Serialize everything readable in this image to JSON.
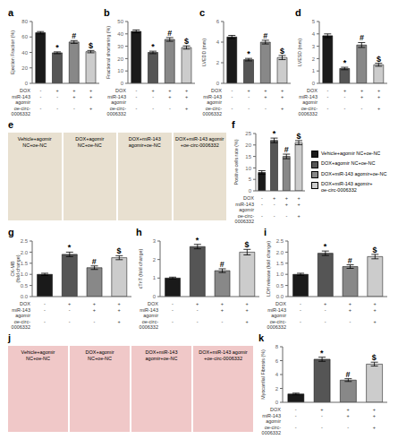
{
  "chart_data": [
    {
      "type": "bar",
      "title": "a",
      "ylabel": "Ejection Fraction (%)",
      "ylim": [
        0,
        80
      ],
      "yticks": [
        0,
        20,
        40,
        60,
        80
      ],
      "values": [
        65.5,
        39.5,
        53.5,
        41.0
      ],
      "errors": [
        1.5,
        1.2,
        1.8,
        1.5
      ],
      "colors": [
        "#1a1a1a",
        "#555555",
        "#888888",
        "#cccccc"
      ],
      "annotations": [
        null,
        "*",
        "#",
        "$"
      ],
      "x_rows": [
        {
          "label": "DOX",
          "values": [
            "-",
            "+",
            "+",
            "+"
          ]
        },
        {
          "label": "miR-143\nagomir",
          "values": [
            "-",
            "-",
            "+",
            "+"
          ]
        },
        {
          "label": "oe-circ-\n0006332",
          "values": [
            "-",
            "-",
            "-",
            "+"
          ]
        }
      ],
      "grid": false
    },
    {
      "type": "bar",
      "title": "b",
      "ylabel": "Fractional shortening (%)",
      "ylim": [
        0,
        50
      ],
      "yticks": [
        0,
        10,
        20,
        30,
        40,
        50
      ],
      "values": [
        42.0,
        25.0,
        35.5,
        29.0
      ],
      "errors": [
        1.2,
        1.0,
        1.5,
        1.3
      ],
      "colors": [
        "#1a1a1a",
        "#555555",
        "#888888",
        "#cccccc"
      ],
      "annotations": [
        null,
        "*",
        "#",
        "$"
      ],
      "x_rows": [
        {
          "label": "DOX",
          "values": [
            "-",
            "+",
            "+",
            "+"
          ]
        },
        {
          "label": "miR-143\nagomir",
          "values": [
            "-",
            "-",
            "+",
            "+"
          ]
        },
        {
          "label": "oe-circ-\n0006332",
          "values": [
            "-",
            "-",
            "-",
            "+"
          ]
        }
      ],
      "grid": false
    },
    {
      "type": "bar",
      "title": "c",
      "ylabel": "LVEDD (mm)",
      "ylim": [
        0,
        6
      ],
      "yticks": [
        0,
        2,
        4,
        6
      ],
      "values": [
        4.5,
        2.3,
        4.0,
        2.5
      ],
      "errors": [
        0.15,
        0.12,
        0.18,
        0.2
      ],
      "colors": [
        "#1a1a1a",
        "#555555",
        "#888888",
        "#cccccc"
      ],
      "annotations": [
        null,
        "*",
        "#",
        "$"
      ],
      "x_rows": [
        {
          "label": "DOX",
          "values": [
            "-",
            "+",
            "+",
            "+"
          ]
        },
        {
          "label": "miR-143\nagomir",
          "values": [
            "-",
            "-",
            "+",
            "+"
          ]
        },
        {
          "label": "oe-circ-\n0006332",
          "values": [
            "-",
            "-",
            "-",
            "+"
          ]
        }
      ],
      "grid": false
    },
    {
      "type": "bar",
      "title": "d",
      "ylabel": "LVESD (mm)",
      "ylim": [
        0,
        5
      ],
      "yticks": [
        0,
        1,
        2,
        3,
        4,
        5
      ],
      "values": [
        3.85,
        1.2,
        3.1,
        1.5
      ],
      "errors": [
        0.15,
        0.1,
        0.2,
        0.12
      ],
      "colors": [
        "#1a1a1a",
        "#555555",
        "#888888",
        "#cccccc"
      ],
      "annotations": [
        null,
        "*",
        "#",
        "$"
      ],
      "x_rows": [
        {
          "label": "DOX",
          "values": [
            "-",
            "+",
            "+",
            "+"
          ]
        },
        {
          "label": "miR-143\nagomir",
          "values": [
            "-",
            "-",
            "+",
            "+"
          ]
        },
        {
          "label": "oe-circ-\n0006332",
          "values": [
            "-",
            "-",
            "-",
            "+"
          ]
        }
      ],
      "grid": false
    },
    {
      "type": "image",
      "title": "e",
      "color": "#e8e0d0",
      "annotations": [
        "Vehicle+agomir\nNC+oe-NC",
        "DOX+agomir\nNC+oe-NC",
        "DOX+miR-143\nagomir+oe-NC",
        "DOX+miR-143 agomir\n+oe-circ-0006332"
      ]
    },
    {
      "type": "bar",
      "title": "f",
      "ylabel": "Positive cells rate (%)",
      "ylim": [
        0,
        25
      ],
      "yticks": [
        0,
        5,
        10,
        15,
        20,
        25
      ],
      "values": [
        8.0,
        22.0,
        15.0,
        21.0
      ],
      "errors": [
        0.8,
        1.0,
        1.0,
        0.9
      ],
      "colors": [
        "#1a1a1a",
        "#555555",
        "#888888",
        "#cccccc"
      ],
      "annotations": [
        null,
        "*",
        "#",
        "$"
      ],
      "x_rows": [
        {
          "label": "DOX",
          "values": [
            "-",
            "+",
            "+",
            "+"
          ]
        },
        {
          "label": "miR-143\nagomir",
          "values": [
            "-",
            "-",
            "+",
            "+"
          ]
        },
        {
          "label": "oe-circ-\n0006332",
          "values": [
            "-",
            "-",
            "-",
            "+"
          ]
        }
      ],
      "legend": "right",
      "legend_labels": [
        "Vehicle+agomir NC+oe-NC",
        "DOX+agomir NC+oe-NC",
        "DOX+miR-143 agomir+oe-NC",
        "DOX+miR-143 agomir+\noe-circ-0006332"
      ],
      "grid": false
    },
    {
      "type": "bar",
      "title": "g",
      "ylabel": "CK-MB\n(fold change)",
      "ylim": [
        0,
        2.5
      ],
      "yticks": [
        {
          "value": 0,
          "label": "0.0"
        },
        0.5,
        {
          "value": 1,
          "label": "1.0"
        },
        1.5,
        {
          "value": 2,
          "label": "2.0"
        },
        2.5
      ],
      "values": [
        1.0,
        1.9,
        1.3,
        1.75
      ],
      "errors": [
        0.05,
        0.1,
        0.08,
        0.09
      ],
      "colors": [
        "#1a1a1a",
        "#555555",
        "#888888",
        "#cccccc"
      ],
      "annotations": [
        null,
        "*",
        "#",
        "$"
      ],
      "x_rows": [
        {
          "label": "DOX",
          "values": [
            "-",
            "+",
            "+",
            "+"
          ]
        },
        {
          "label": "miR-143\nagomir",
          "values": [
            "-",
            "-",
            "+",
            "+"
          ]
        },
        {
          "label": "oe-circ-\n0006332",
          "values": [
            "-",
            "-",
            "-",
            "+"
          ]
        }
      ],
      "grid": false
    },
    {
      "type": "bar",
      "title": "h",
      "ylabel": "cTnT (fold change)",
      "ylim": [
        0,
        3
      ],
      "yticks": [
        0,
        1,
        2,
        3
      ],
      "values": [
        1.0,
        2.7,
        1.4,
        2.4
      ],
      "errors": [
        0.05,
        0.12,
        0.1,
        0.15
      ],
      "colors": [
        "#1a1a1a",
        "#555555",
        "#888888",
        "#cccccc"
      ],
      "annotations": [
        null,
        "*",
        "#",
        "$"
      ],
      "x_rows": [
        {
          "label": "DOX",
          "values": [
            "-",
            "+",
            "+",
            "+"
          ]
        },
        {
          "label": "miR-143\nagomir",
          "values": [
            "-",
            "-",
            "+",
            "+"
          ]
        },
        {
          "label": "oe-circ-\n0006332",
          "values": [
            "-",
            "-",
            "-",
            "+"
          ]
        }
      ],
      "grid": false
    },
    {
      "type": "bar",
      "title": "i",
      "ylabel": "LDH release (fold change)",
      "ylim": [
        0,
        2.5
      ],
      "yticks": [
        {
          "value": 0,
          "label": "0.0"
        },
        0.5,
        {
          "value": 1,
          "label": "1.0"
        },
        1.5,
        {
          "value": 2,
          "label": "2.0"
        },
        2.5
      ],
      "values": [
        1.0,
        1.95,
        1.35,
        1.8
      ],
      "errors": [
        0.05,
        0.1,
        0.08,
        0.1
      ],
      "colors": [
        "#1a1a1a",
        "#555555",
        "#888888",
        "#cccccc"
      ],
      "annotations": [
        null,
        "*",
        "#",
        "$"
      ],
      "x_rows": [
        {
          "label": "DOX",
          "values": [
            "-",
            "+",
            "+",
            "+"
          ]
        },
        {
          "label": "miR-143\nagomir",
          "values": [
            "-",
            "-",
            "+",
            "+"
          ]
        },
        {
          "label": "oe-circ-\n0006332",
          "values": [
            "-",
            "-",
            "-",
            "+"
          ]
        }
      ],
      "grid": false
    },
    {
      "type": "image",
      "title": "j",
      "color": "#f0c8c8",
      "annotations": [
        "Vehicle+agomir\nNC+oe-NC",
        "DOX+agomir\nNC+oe-NC",
        "DOX+miR-143\nagomir+oe-NC",
        "DOX+miR-143 agomir\n+oe-circ-0006332"
      ]
    },
    {
      "type": "bar",
      "title": "k",
      "ylabel": "Myocardial Fibrosis (%)",
      "ylim": [
        0,
        8
      ],
      "yticks": [
        0,
        2,
        4,
        6,
        8
      ],
      "values": [
        1.2,
        6.2,
        3.2,
        5.5
      ],
      "errors": [
        0.12,
        0.3,
        0.2,
        0.28
      ],
      "colors": [
        "#1a1a1a",
        "#555555",
        "#888888",
        "#cccccc"
      ],
      "annotations": [
        null,
        "*",
        "#",
        "$"
      ],
      "x_rows": [
        {
          "label": "DOX",
          "values": [
            "-",
            "+",
            "+",
            "+"
          ]
        },
        {
          "label": "miR-143\nagomir",
          "values": [
            "-",
            "-",
            "+",
            "+"
          ]
        },
        {
          "label": "oe-circ-\n0006332",
          "values": [
            "-",
            "-",
            "-",
            "+"
          ]
        }
      ],
      "grid": false
    }
  ]
}
